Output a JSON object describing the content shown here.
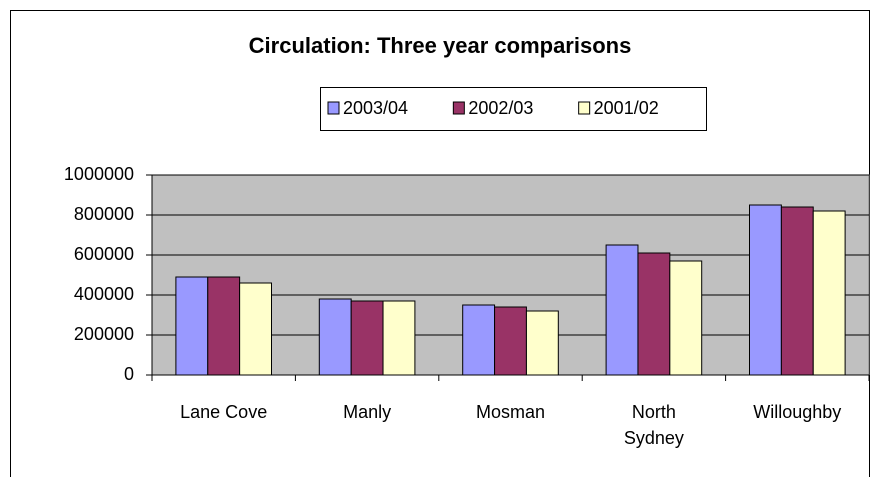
{
  "chart_data": {
    "type": "bar",
    "title": "Circulation: Three year comparisons",
    "categories": [
      "Lane Cove",
      "Manly",
      "Mosman",
      "North Sydney",
      "Willoughby"
    ],
    "series": [
      {
        "name": "2003/04",
        "color": "#9999ff",
        "values": [
          490000,
          380000,
          350000,
          650000,
          850000
        ]
      },
      {
        "name": "2002/03",
        "color": "#993366",
        "values": [
          490000,
          370000,
          340000,
          610000,
          840000
        ]
      },
      {
        "name": "2001/02",
        "color": "#ffffcc",
        "values": [
          460000,
          370000,
          320000,
          570000,
          820000
        ]
      }
    ],
    "ylim": [
      0,
      1000000
    ],
    "yticks": [
      0,
      200000,
      400000,
      600000,
      800000,
      1000000
    ],
    "grid": true,
    "legend": "top",
    "plot_background": "#c0c0c0"
  }
}
